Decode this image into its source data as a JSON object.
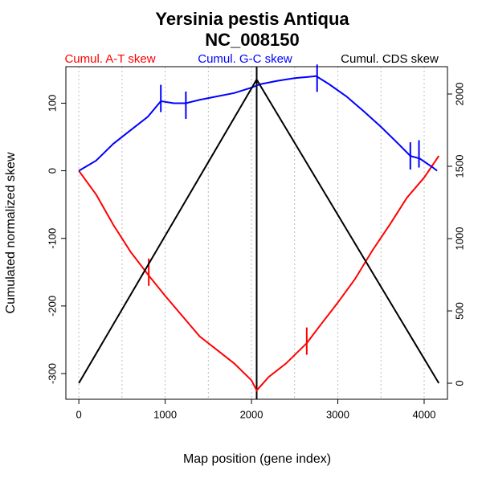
{
  "chart_data": {
    "type": "line",
    "title": "Yersinia pestis Antiqua",
    "subtitle": "NC_008150",
    "x_label": "Map position (gene index)",
    "y_label": "Cumulated normalized skew",
    "xlim": [
      -150,
      4270
    ],
    "xticks": [
      0,
      1000,
      2000,
      3000,
      4000
    ],
    "xgrid": [
      0,
      500,
      1000,
      1500,
      2000,
      2500,
      3000,
      3500,
      4000
    ],
    "ylim": [
      -338,
      154
    ],
    "yticks": [
      -300,
      -200,
      -100,
      0,
      100
    ],
    "y2lim": [
      -111,
      2189
    ],
    "y2ticks": [
      0,
      500,
      1000,
      1500,
      2000
    ],
    "vline": 2060,
    "series": [
      {
        "name": "Cumul. A-T skew",
        "color": "#ff0000",
        "axis": "y",
        "x": [
          0,
          200,
          400,
          600,
          810,
          1000,
          1200,
          1400,
          1600,
          1800,
          2000,
          2060,
          2200,
          2400,
          2640,
          2800,
          3000,
          3200,
          3400,
          3600,
          3800,
          4000,
          4170
        ],
        "values": [
          0,
          -35,
          -80,
          -120,
          -155,
          -185,
          -215,
          -245,
          -265,
          -285,
          -310,
          -325,
          -305,
          -285,
          -255,
          -228,
          -195,
          -160,
          -118,
          -80,
          -40,
          -10,
          22
        ],
        "markers_x": [
          810,
          2640
        ],
        "markers_y": [
          -150,
          -252
        ]
      },
      {
        "name": "Cumul. G-C skew",
        "color": "#0000ff",
        "axis": "y",
        "x": [
          0,
          200,
          400,
          600,
          800,
          950,
          1100,
          1240,
          1400,
          1600,
          1800,
          2000,
          2100,
          2300,
          2500,
          2750,
          2900,
          3100,
          3300,
          3500,
          3700,
          3840,
          3950,
          4100,
          4150
        ],
        "values": [
          0,
          15,
          40,
          60,
          80,
          103,
          100,
          100,
          105,
          110,
          115,
          123,
          128,
          133,
          137,
          140,
          128,
          110,
          88,
          65,
          40,
          22,
          18,
          5,
          0
        ],
        "markers_x": [
          950,
          1240,
          2760,
          3840,
          3940
        ],
        "markers_y": [
          107,
          97,
          137,
          22,
          25
        ]
      },
      {
        "name": "Cumul. CDS skew",
        "color": "#000000",
        "axis": "y2",
        "x": [
          0,
          2060,
          4170
        ],
        "values": [
          0,
          2100,
          0
        ]
      }
    ]
  }
}
